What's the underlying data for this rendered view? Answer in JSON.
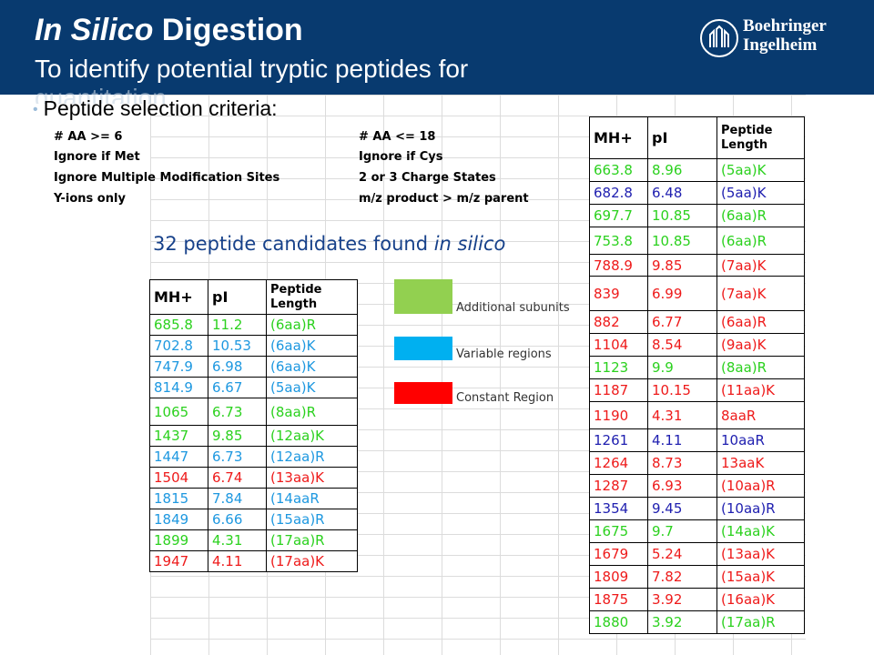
{
  "header": {
    "title_italic": "In Silico",
    "title_rest": " Digestion",
    "subtitle": "To identify potential tryptic peptides for",
    "subtitle_overflow": "quantitation",
    "logo_line1": "Boehringer",
    "logo_line2": "Ingelheim"
  },
  "bullet": "Peptide selection criteria:",
  "criteria": {
    "left": [
      "# AA >= 6",
      "Ignore if Met",
      "Ignore Multiple Modification Sites",
      "Y-ions only"
    ],
    "right": [
      "# AA <= 18",
      "Ignore if Cys",
      "2 or 3 Charge States",
      "m/z product > m/z parent"
    ]
  },
  "candidates": {
    "prefix": "32 peptide candidates found ",
    "italic": "in silico"
  },
  "table_headers": {
    "mh": "MH+",
    "pi": "pI",
    "length_line1": "Peptide",
    "length_line2": "Length"
  },
  "colors": {
    "green": "#2bd11e",
    "blue": "#1e98e0",
    "red": "#ee1a1a",
    "navy": "#2020b0",
    "header_bg": "#083a6f"
  },
  "legend": [
    {
      "label": "Additional subunits",
      "color": "#92d050"
    },
    {
      "label": "Variable regions",
      "color": "#00b0f0"
    },
    {
      "label": "Constant Region",
      "color": "#ff0000"
    }
  ],
  "left_rows": [
    {
      "mh": "685.8",
      "pi": "11.2",
      "len": "(6aa)R",
      "color": "green"
    },
    {
      "mh": "702.8",
      "pi": "10.53",
      "len": "(6aa)K",
      "color": "blue"
    },
    {
      "mh": "747.9",
      "pi": "6.98",
      "len": "(6aa)K",
      "color": "blue"
    },
    {
      "mh": "814.9",
      "pi": "6.67",
      "len": "(5aa)K",
      "color": "blue"
    },
    {
      "mh": "1065",
      "pi": "6.73",
      "len": "(8aa)R",
      "color": "green"
    },
    {
      "mh": "1437",
      "pi": "9.85",
      "len": "(12aa)K",
      "color": "green"
    },
    {
      "mh": "1447",
      "pi": "6.73",
      "len": "(12aa)R",
      "color": "blue"
    },
    {
      "mh": "1504",
      "pi": "6.74",
      "len": "(13aa)K",
      "color": "red"
    },
    {
      "mh": "1815",
      "pi": "7.84",
      "len": "(14aaR",
      "color": "blue"
    },
    {
      "mh": "1849",
      "pi": "6.66",
      "len": "(15aa)R",
      "color": "blue"
    },
    {
      "mh": "1899",
      "pi": "4.31",
      "len": "(17aa)R",
      "color": "green"
    },
    {
      "mh": "1947",
      "pi": "4.11",
      "len": "(17aa)K",
      "color": "red"
    }
  ],
  "right_rows": [
    {
      "mh": "663.8",
      "pi": "8.96",
      "len": "(5aa)K",
      "color": "green"
    },
    {
      "mh": "682.8",
      "pi": "6.48",
      "len": "(5aa)K",
      "color": "navy"
    },
    {
      "mh": "697.7",
      "pi": "10.85",
      "len": "(6aa)R",
      "color": "green"
    },
    {
      "mh": "753.8",
      "pi": "10.85",
      "len": "(6aa)R",
      "color": "green"
    },
    {
      "mh": "788.9",
      "pi": "9.85",
      "len": "(7aa)K",
      "color": "red"
    },
    {
      "mh": "839",
      "pi": "6.99",
      "len": "(7aa)K",
      "color": "red"
    },
    {
      "mh": "882",
      "pi": "6.77",
      "len": "(6aa)R",
      "color": "red"
    },
    {
      "mh": "1104",
      "pi": "8.54",
      "len": "(9aa)K",
      "color": "red"
    },
    {
      "mh": "1123",
      "pi": "9.9",
      "len": "(8aa)R",
      "color": "green"
    },
    {
      "mh": "1187",
      "pi": "10.15",
      "len": "(11aa)K",
      "color": "red"
    },
    {
      "mh": "1190",
      "pi": "4.31",
      "len": "8aaR",
      "color": "red"
    },
    {
      "mh": "1261",
      "pi": "4.11",
      "len": "10aaR",
      "color": "navy"
    },
    {
      "mh": "1264",
      "pi": "8.73",
      "len": "13aaK",
      "color": "red"
    },
    {
      "mh": "1287",
      "pi": "6.93",
      "len": "(10aa)R",
      "color": "red"
    },
    {
      "mh": "1354",
      "pi": "9.45",
      "len": "(10aa)R",
      "color": "navy"
    },
    {
      "mh": "1675",
      "pi": "9.7",
      "len": "(14aa)K",
      "color": "green"
    },
    {
      "mh": "1679",
      "pi": "5.24",
      "len": "(13aa)K",
      "color": "red"
    },
    {
      "mh": "1809",
      "pi": "7.82",
      "len": "(15aa)K",
      "color": "red"
    },
    {
      "mh": "1875",
      "pi": "3.92",
      "len": "(16aa)K",
      "color": "red"
    },
    {
      "mh": "1880",
      "pi": "3.92",
      "len": "(17aa)R",
      "color": "green"
    }
  ]
}
